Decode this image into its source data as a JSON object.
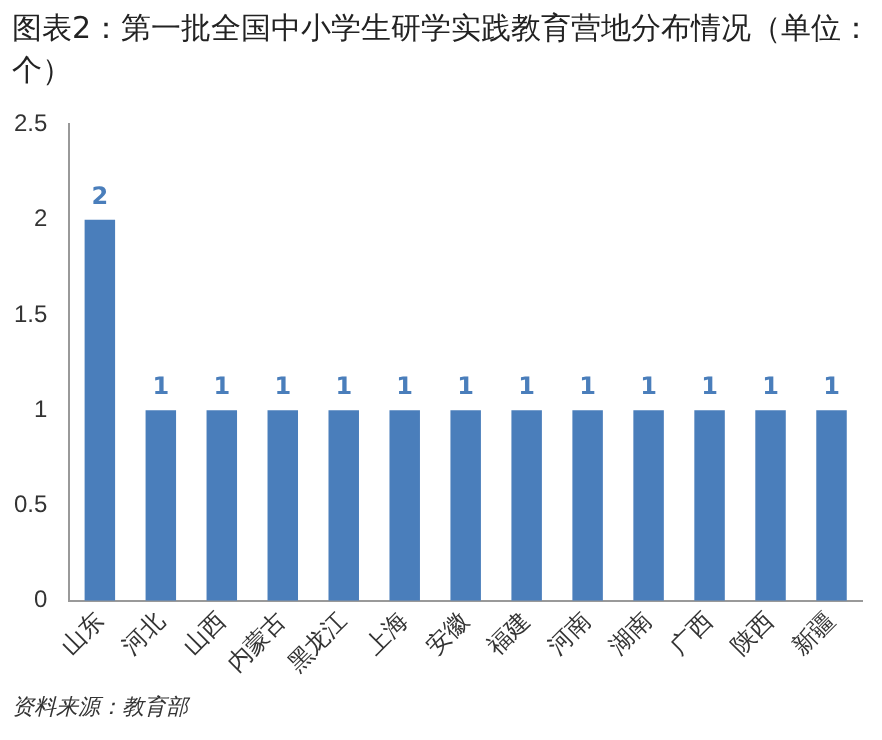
{
  "chart_data": {
    "type": "bar",
    "title": "图表2：第一批全国中小学生研学实践教育营地分布情况（单位：个）",
    "categories": [
      "山东",
      "河北",
      "山西",
      "内蒙古",
      "黑龙江",
      "上海",
      "安徽",
      "福建",
      "河南",
      "湖南",
      "广西",
      "陕西",
      "新疆"
    ],
    "values": [
      2,
      1,
      1,
      1,
      1,
      1,
      1,
      1,
      1,
      1,
      1,
      1,
      1
    ],
    "color": "#4a7ebb",
    "ylim": [
      0,
      2.5
    ],
    "yticks": [
      0,
      0.5,
      1,
      1.5,
      2,
      2.5
    ],
    "grid": false,
    "legend": false,
    "data_labels": true,
    "annotations": [
      "资料来源：教育部"
    ]
  }
}
